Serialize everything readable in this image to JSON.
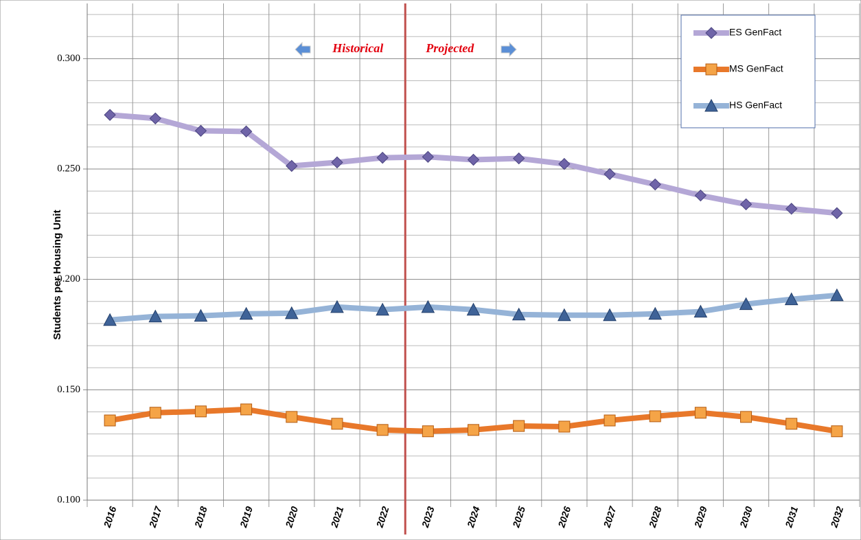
{
  "chart_data": {
    "type": "line",
    "y_label": "Students per Housing Unit",
    "categories": [
      "2016",
      "2017",
      "2018",
      "2019",
      "2020",
      "2021",
      "2022",
      "2023",
      "2024",
      "2025",
      "2026",
      "2027",
      "2028",
      "2029",
      "2030",
      "2031",
      "2032"
    ],
    "series": [
      {
        "name": "ES GenFact",
        "color": "#b4a7d6",
        "marker_color": "#6f64a8",
        "marker": "diamond",
        "values": [
          0.2745,
          0.2729,
          0.2673,
          0.267,
          0.2514,
          0.253,
          0.2551,
          0.2555,
          0.2542,
          0.2548,
          0.2523,
          0.2477,
          0.243,
          0.238,
          0.234,
          0.232,
          0.23
        ]
      },
      {
        "name": "MS GenFact",
        "color": "#e8782a",
        "marker_color": "#f5a447",
        "marker": "square",
        "values": [
          0.1361,
          0.1396,
          0.1402,
          0.1411,
          0.1377,
          0.1346,
          0.1318,
          0.1312,
          0.1318,
          0.1336,
          0.1333,
          0.1361,
          0.138,
          0.1396,
          0.1377,
          0.1346,
          0.1312
        ]
      },
      {
        "name": "HS GenFact",
        "color": "#95b3d7",
        "marker_color": "#3f6398",
        "marker": "triangle",
        "values": [
          0.1816,
          0.1832,
          0.1835,
          0.1844,
          0.1847,
          0.1875,
          0.1863,
          0.1875,
          0.1863,
          0.1841,
          0.1838,
          0.1838,
          0.1844,
          0.1854,
          0.1888,
          0.191,
          0.1928
        ]
      }
    ],
    "ylim": [
      0.1,
      0.325
    ],
    "yticks": [
      {
        "value": 0.1,
        "label": "0.100"
      },
      {
        "value": 0.15,
        "label": "0.150"
      },
      {
        "value": 0.2,
        "label": "0.200"
      },
      {
        "value": 0.25,
        "label": "0.250"
      },
      {
        "value": 0.3,
        "label": "0.300"
      }
    ],
    "minor_yticks": [
      0.11,
      0.12,
      0.13,
      0.14,
      0.16,
      0.17,
      0.18,
      0.19,
      0.21,
      0.22,
      0.23,
      0.24,
      0.26,
      0.27,
      0.28,
      0.29,
      0.31,
      0.32
    ],
    "annotations": [
      "Historical",
      "Projected"
    ],
    "grid": true,
    "legend": "upper right"
  }
}
